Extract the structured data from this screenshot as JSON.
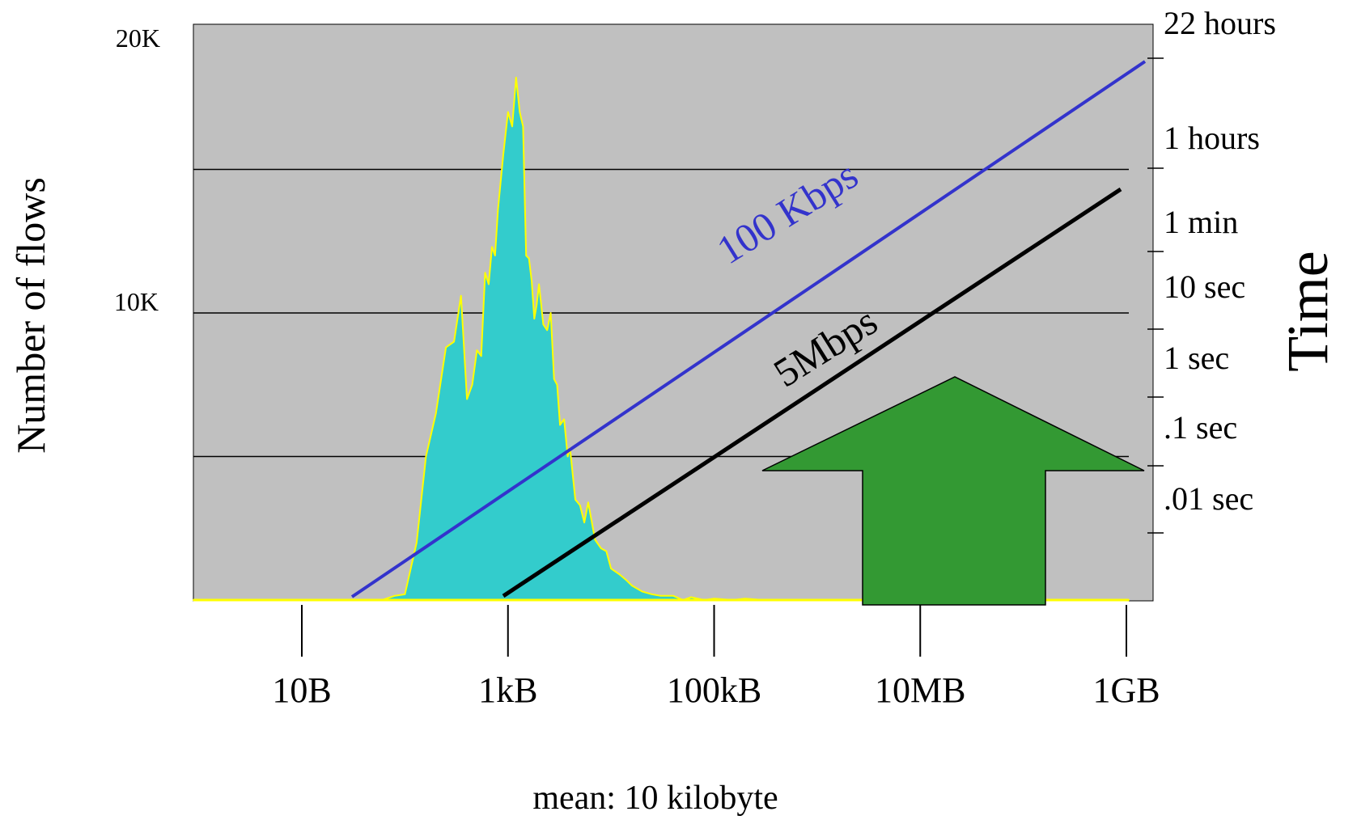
{
  "chart_data": {
    "type": "area",
    "ylabel": "Number of flows",
    "y2label": "Time",
    "xlabel": "mean: 10 kilobyte",
    "x_scale": "log",
    "x_tick_labels": [
      "10B",
      "1kB",
      "100kB",
      "10MB",
      "1GB"
    ],
    "x_tick_values": [
      10,
      1000,
      100000,
      10000000,
      1000000000
    ],
    "xlim": [
      1,
      3000000000
    ],
    "y_tick_labels": [
      "20K",
      "10K"
    ],
    "ylim": [
      0,
      20000
    ],
    "y_gridlines": [
      5000,
      10000,
      15000
    ],
    "grid": true,
    "background": "#c0c0c0",
    "fill_color": "#33cccc",
    "outline_color": "#ffff00",
    "series": [
      {
        "x": [
          50,
          60,
          80,
          100,
          130,
          160,
          200,
          250,
          300,
          350,
          400,
          450,
          500,
          550,
          600,
          650,
          700,
          750,
          800,
          900,
          1000,
          1100,
          1200,
          1300,
          1400,
          1500,
          1600,
          1700,
          1800,
          1900,
          2000,
          2200,
          2400,
          2600,
          2800,
          3000,
          3200,
          3500,
          3800,
          4000,
          4500,
          5000,
          5500,
          6000,
          7000,
          8000,
          9000,
          10000,
          12000,
          14000,
          16000,
          20000,
          25000,
          30000,
          40000,
          50000,
          60000,
          80000,
          100000,
          150000,
          200000,
          300000,
          500000,
          1000000,
          3000000,
          10000000,
          100000000,
          1000000000
        ],
        "values": [
          0,
          0,
          150,
          200,
          2000,
          5000,
          6500,
          8800,
          9000,
          10600,
          7000,
          7500,
          8700,
          8500,
          11400,
          11000,
          12300,
          12000,
          13600,
          15500,
          17000,
          16500,
          18200,
          17000,
          16500,
          12000,
          11900,
          11100,
          9800,
          10300,
          11000,
          9600,
          9400,
          10000,
          7700,
          7500,
          6100,
          6300,
          5000,
          5300,
          3500,
          3300,
          2700,
          3400,
          2100,
          1800,
          1700,
          1100,
          900,
          700,
          500,
          300,
          200,
          150,
          150,
          0,
          100,
          0,
          50,
          0,
          50,
          0,
          0,
          0,
          0,
          0,
          0,
          0
        ]
      }
    ],
    "time_axis": {
      "labels": [
        "22 hours",
        "1 hours",
        "1 min",
        "10 sec",
        "1 sec",
        ".1 sec",
        ".01 sec"
      ]
    },
    "rate_lines": [
      {
        "label": "100 Kbps",
        "color": "#3333cc"
      },
      {
        "label": "5Mbps",
        "color": "#000000"
      }
    ],
    "annotation_arrow": {
      "color": "#339933",
      "direction": "up"
    }
  }
}
